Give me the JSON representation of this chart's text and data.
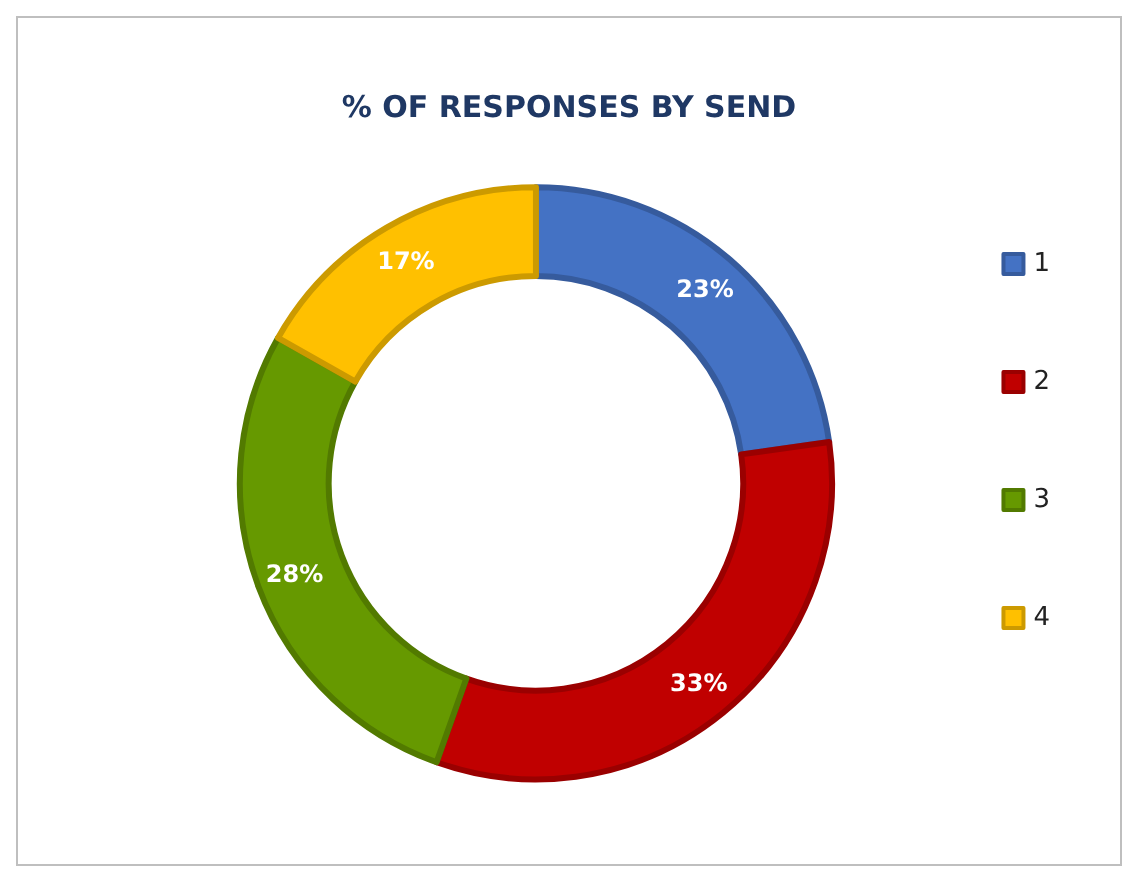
{
  "chart_data": {
    "type": "donut",
    "title": "% OF RESPONSES BY SEND",
    "categories": [
      "1",
      "2",
      "3",
      "4"
    ],
    "values": [
      23,
      33,
      28,
      17
    ],
    "value_labels": [
      "23%",
      "33%",
      "28%",
      "17%"
    ],
    "colors": [
      "#4472c4",
      "#c00000",
      "#669900",
      "#ffc000"
    ],
    "legend": "right"
  }
}
